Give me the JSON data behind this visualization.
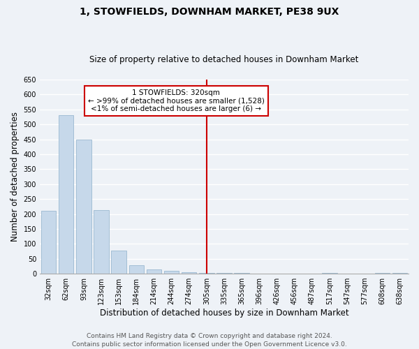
{
  "title": "1, STOWFIELDS, DOWNHAM MARKET, PE38 9UX",
  "subtitle": "Size of property relative to detached houses in Downham Market",
  "xlabel": "Distribution of detached houses by size in Downham Market",
  "ylabel": "Number of detached properties",
  "bar_color": "#c6d8ea",
  "bar_edge_color": "#9ab8d0",
  "background_color": "#eef2f7",
  "grid_color": "#ffffff",
  "categories": [
    "32sqm",
    "62sqm",
    "93sqm",
    "123sqm",
    "153sqm",
    "184sqm",
    "214sqm",
    "244sqm",
    "274sqm",
    "305sqm",
    "335sqm",
    "365sqm",
    "396sqm",
    "426sqm",
    "456sqm",
    "487sqm",
    "517sqm",
    "547sqm",
    "577sqm",
    "608sqm",
    "638sqm"
  ],
  "values": [
    210,
    530,
    450,
    213,
    78,
    28,
    15,
    10,
    5,
    3,
    2,
    2,
    1,
    1,
    1,
    1,
    2,
    1,
    1,
    2,
    2
  ],
  "ylim": [
    0,
    650
  ],
  "yticks": [
    0,
    50,
    100,
    150,
    200,
    250,
    300,
    350,
    400,
    450,
    500,
    550,
    600,
    650
  ],
  "vline_index": 9,
  "vline_color": "#cc0000",
  "ann_line1": "1 STOWFIELDS: 320sqm",
  "ann_line2": "← >99% of detached houses are smaller (1,528)",
  "ann_line3": "<1% of semi-detached houses are larger (6) →",
  "footer_line1": "Contains HM Land Registry data © Crown copyright and database right 2024.",
  "footer_line2": "Contains public sector information licensed under the Open Government Licence v3.0.",
  "title_fontsize": 10,
  "subtitle_fontsize": 8.5,
  "axis_label_fontsize": 8.5,
  "tick_fontsize": 7,
  "annotation_fontsize": 7.5,
  "footer_fontsize": 6.5
}
